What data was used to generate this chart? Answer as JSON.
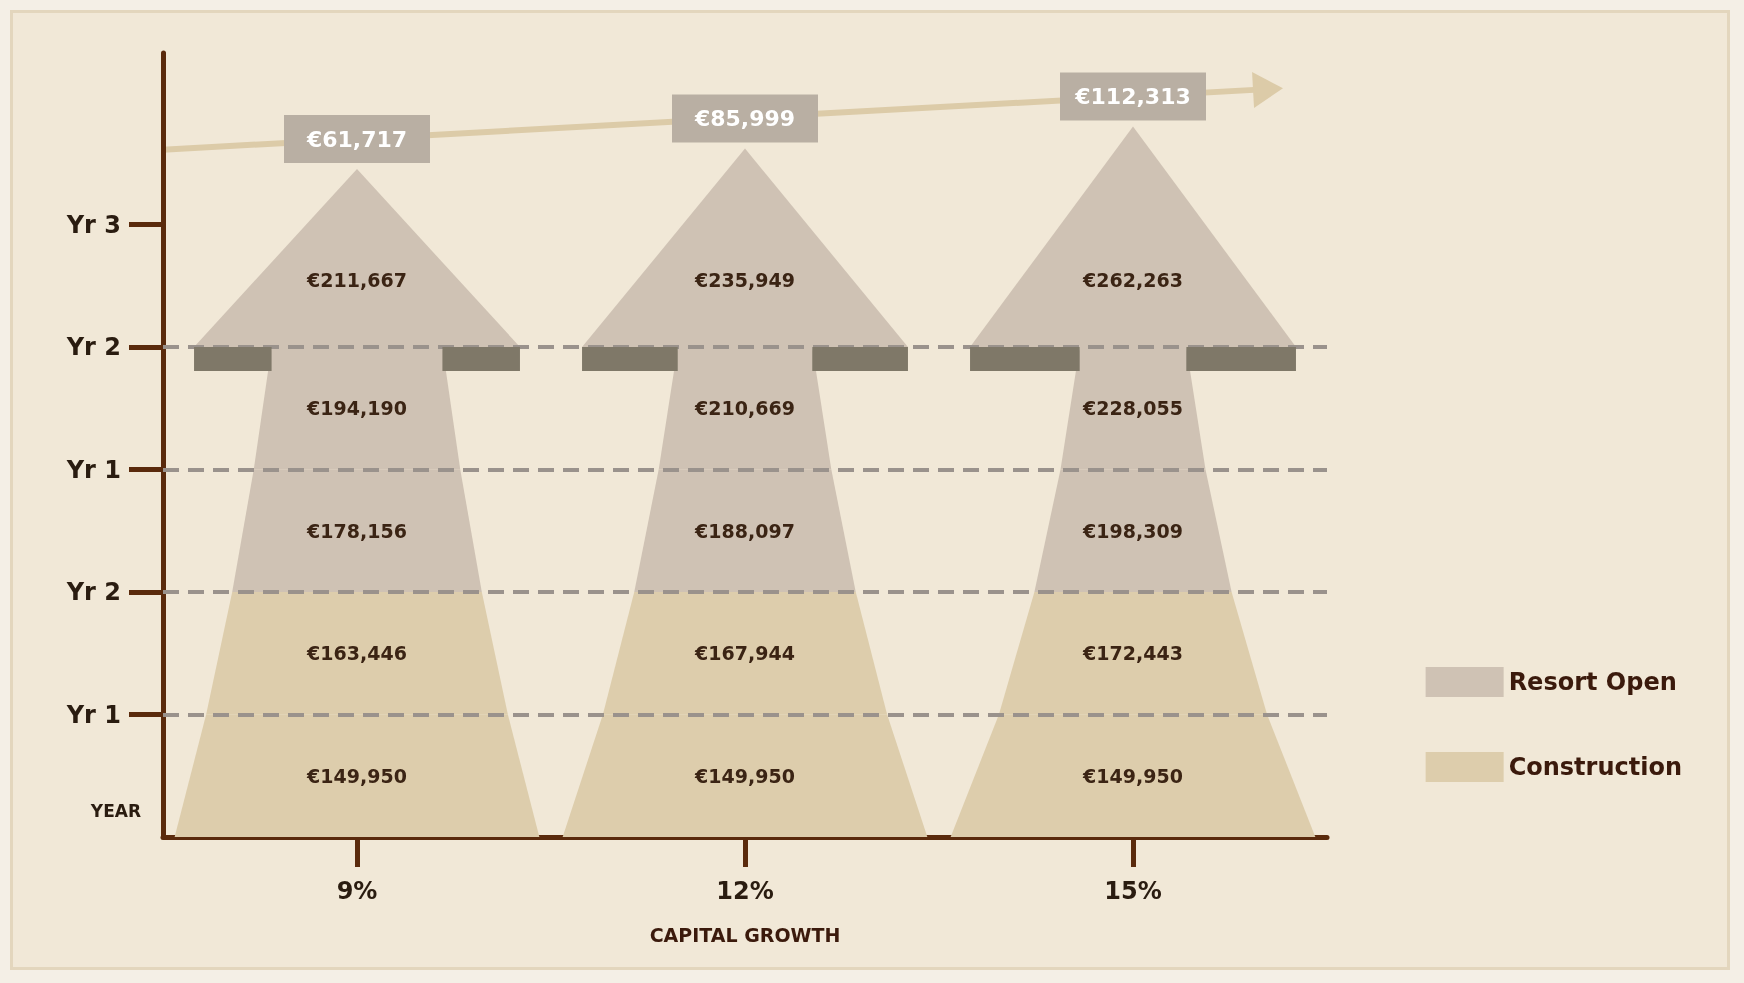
{
  "chart_data": {
    "type": "other",
    "xlabel": "CAPITAL GROWTH",
    "ylabel": "YEAR",
    "categories": [
      "9%",
      "12%",
      "15%"
    ],
    "y_categories": [
      "Yr 3",
      "Yr 2",
      "Yr 1",
      "Yr 2",
      "Yr 1"
    ],
    "legend": "bottom right",
    "series": [
      {
        "name": "Construction",
        "color": "#ddcdac",
        "values": [
          149950,
          149950,
          149950
        ],
        "value_labels": [
          "€149,950",
          "€149,950",
          "€149,950"
        ]
      },
      {
        "color": "#ddcdac",
        "values": [
          163446,
          167944,
          172443
        ],
        "value_labels": [
          "€163,446",
          "€167,944",
          "€172,443"
        ]
      },
      {
        "name": "Resort Open",
        "color": "#cfc2b4",
        "values": [
          178156,
          188097,
          198309
        ],
        "value_labels": [
          "€178,156",
          "€188,097",
          "€198,309"
        ]
      },
      {
        "color": "#cfc2b4",
        "values": [
          194190,
          210669,
          228055
        ],
        "value_labels": [
          "€194,190",
          "€210,669",
          "€228,055"
        ]
      },
      {
        "color": "#cfc2b4",
        "values": [
          211667,
          235949,
          262263
        ],
        "value_labels": [
          "€211,667",
          "€235,949",
          "€262,263"
        ]
      }
    ],
    "annotations": [
      "€61,717",
      "€85,999",
      "€112,313"
    ]
  }
}
